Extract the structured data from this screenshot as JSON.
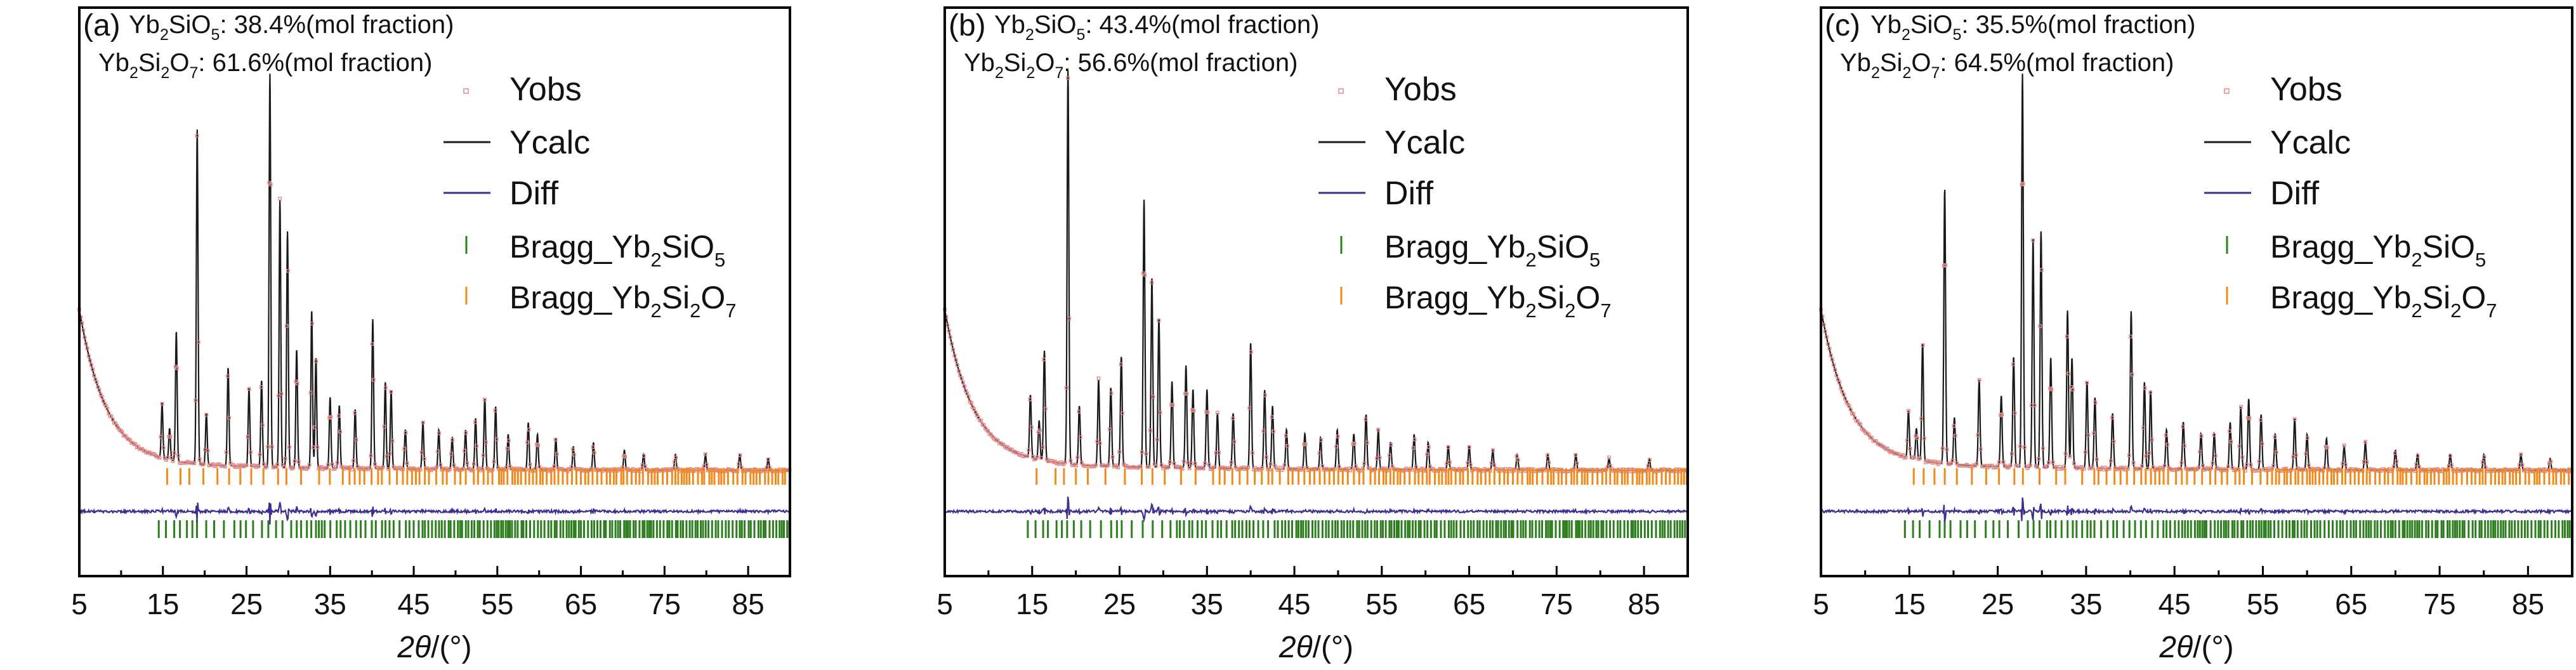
{
  "figure": {
    "x_axis_label": {
      "prefix": "2",
      "theta": "θ",
      "suffix": "/(°)"
    },
    "tick_labels": [
      "5",
      "15",
      "25",
      "35",
      "45",
      "55",
      "65",
      "75",
      "85"
    ],
    "legend": {
      "yobs": "Yobs",
      "ycalc": "Ycalc",
      "diff": "Diff",
      "bragg_prefix": "Bragg_",
      "bragg1": {
        "p1": "Yb",
        "s1": "2",
        "p2": "SiO",
        "s2": "5"
      },
      "bragg2": {
        "p1": "Yb",
        "s1": "2",
        "p2": "Si",
        "s2": "2",
        "p3": "O",
        "s3": "7"
      }
    }
  },
  "colors": {
    "yobs": "#e08a8a",
    "ycalc": "#1a1a1a",
    "diff": "#3b2f8f",
    "bragg_yb2sio5": "#2e7d1f",
    "bragg_yb2si2o7": "#f08a1c"
  },
  "chart_data": [
    {
      "type": "line",
      "panel": "(a)",
      "annotation": [
        {
          "p1": "Yb",
          "s1": "2",
          "p2": "SiO",
          "s2": "5",
          "rest": ": 38.4%(mol fraction)"
        },
        {
          "p1": "Yb",
          "s1": "2",
          "p2": "Si",
          "s2": "2",
          "p3": "O",
          "s3": "7",
          "rest": ": 61.6%(mol fraction)"
        }
      ],
      "xlim": [
        5,
        90
      ],
      "ylim": [
        0,
        100
      ],
      "peaks": [
        [
          14.9,
          14
        ],
        [
          15.8,
          8
        ],
        [
          16.6,
          33
        ],
        [
          19.1,
          85
        ],
        [
          20.2,
          13
        ],
        [
          22.8,
          25
        ],
        [
          25.3,
          20
        ],
        [
          26.8,
          22
        ],
        [
          27.8,
          100
        ],
        [
          29.0,
          68
        ],
        [
          29.9,
          60
        ],
        [
          31.0,
          30
        ],
        [
          32.8,
          40
        ],
        [
          33.3,
          28
        ],
        [
          35.0,
          18
        ],
        [
          36.1,
          16
        ],
        [
          38.0,
          15
        ],
        [
          40.1,
          38
        ],
        [
          41.6,
          22
        ],
        [
          42.3,
          20
        ],
        [
          44.0,
          10
        ],
        [
          46.1,
          12
        ],
        [
          48.0,
          10
        ],
        [
          49.6,
          8
        ],
        [
          51.2,
          10
        ],
        [
          52.4,
          13
        ],
        [
          53.5,
          18
        ],
        [
          54.8,
          16
        ],
        [
          56.3,
          9
        ],
        [
          58.7,
          12
        ],
        [
          59.8,
          9
        ],
        [
          62.0,
          8
        ],
        [
          64.1,
          6
        ],
        [
          66.5,
          7
        ],
        [
          70.2,
          5
        ],
        [
          72.5,
          4
        ],
        [
          76.3,
          4
        ],
        [
          79.9,
          4
        ],
        [
          84.0,
          4
        ],
        [
          87.4,
          3
        ]
      ],
      "bragg_yb2sio5_start": 14.5,
      "bragg_yb2si2o7_start": 15.5
    },
    {
      "type": "line",
      "panel": "(b)",
      "annotation": [
        {
          "p1": "Yb",
          "s1": "2",
          "p2": "SiO",
          "s2": "5",
          "rest": ": 43.4%(mol fraction)"
        },
        {
          "p1": "Yb",
          "s1": "2",
          "p2": "Si",
          "s2": "2",
          "p3": "O",
          "s3": "7",
          "rest": ": 56.6%(mol fraction)"
        }
      ],
      "xlim": [
        5,
        90
      ],
      "ylim": [
        0,
        100
      ],
      "peaks": [
        [
          14.8,
          16
        ],
        [
          15.8,
          10
        ],
        [
          16.4,
          28
        ],
        [
          19.1,
          100
        ],
        [
          20.4,
          15
        ],
        [
          22.6,
          22
        ],
        [
          24.0,
          20
        ],
        [
          25.2,
          28
        ],
        [
          27.8,
          68
        ],
        [
          28.7,
          48
        ],
        [
          29.5,
          38
        ],
        [
          31.0,
          22
        ],
        [
          32.6,
          26
        ],
        [
          33.4,
          20
        ],
        [
          35.0,
          20
        ],
        [
          36.2,
          14
        ],
        [
          38.0,
          14
        ],
        [
          40.0,
          32
        ],
        [
          41.6,
          20
        ],
        [
          42.5,
          16
        ],
        [
          44.1,
          10
        ],
        [
          46.2,
          9
        ],
        [
          48.0,
          8
        ],
        [
          49.9,
          10
        ],
        [
          51.8,
          9
        ],
        [
          53.2,
          14
        ],
        [
          54.6,
          10
        ],
        [
          56.0,
          7
        ],
        [
          58.7,
          9
        ],
        [
          60.3,
          7
        ],
        [
          62.6,
          6
        ],
        [
          65.0,
          6
        ],
        [
          67.7,
          5
        ],
        [
          70.5,
          4
        ],
        [
          74.0,
          4
        ],
        [
          77.2,
          4
        ],
        [
          81.0,
          3
        ],
        [
          85.6,
          3
        ]
      ],
      "bragg_yb2sio5_start": 14.5,
      "bragg_yb2si2o7_start": 15.5
    },
    {
      "type": "line",
      "panel": "(c)",
      "annotation": [
        {
          "p1": "Yb",
          "s1": "2",
          "p2": "SiO",
          "s2": "5",
          "rest": ": 35.5%(mol fraction)"
        },
        {
          "p1": "Yb",
          "s1": "2",
          "p2": "Si",
          "s2": "2",
          "p3": "O",
          "s3": "7",
          "rest": ": 64.5%(mol fraction)"
        }
      ],
      "xlim": [
        5,
        90
      ],
      "ylim": [
        0,
        100
      ],
      "peaks": [
        [
          14.9,
          12
        ],
        [
          15.8,
          8
        ],
        [
          16.5,
          30
        ],
        [
          19.0,
          70
        ],
        [
          20.1,
          12
        ],
        [
          22.9,
          22
        ],
        [
          25.4,
          18
        ],
        [
          26.8,
          28
        ],
        [
          27.8,
          100
        ],
        [
          29.0,
          58
        ],
        [
          29.9,
          60
        ],
        [
          31.0,
          28
        ],
        [
          32.9,
          40
        ],
        [
          33.4,
          28
        ],
        [
          35.1,
          22
        ],
        [
          36.0,
          18
        ],
        [
          38.0,
          14
        ],
        [
          40.1,
          40
        ],
        [
          41.6,
          22
        ],
        [
          42.3,
          20
        ],
        [
          44.1,
          10
        ],
        [
          46.0,
          12
        ],
        [
          48.0,
          9
        ],
        [
          49.5,
          9
        ],
        [
          51.3,
          12
        ],
        [
          52.5,
          16
        ],
        [
          53.4,
          18
        ],
        [
          54.8,
          14
        ],
        [
          56.4,
          9
        ],
        [
          58.6,
          13
        ],
        [
          60.0,
          9
        ],
        [
          62.2,
          8
        ],
        [
          64.2,
          6
        ],
        [
          66.6,
          7
        ],
        [
          70.0,
          5
        ],
        [
          72.5,
          4
        ],
        [
          76.2,
          4
        ],
        [
          80.0,
          4
        ],
        [
          84.2,
          4
        ],
        [
          87.5,
          3
        ]
      ],
      "bragg_yb2sio5_start": 14.5,
      "bragg_yb2si2o7_start": 15.5
    }
  ]
}
